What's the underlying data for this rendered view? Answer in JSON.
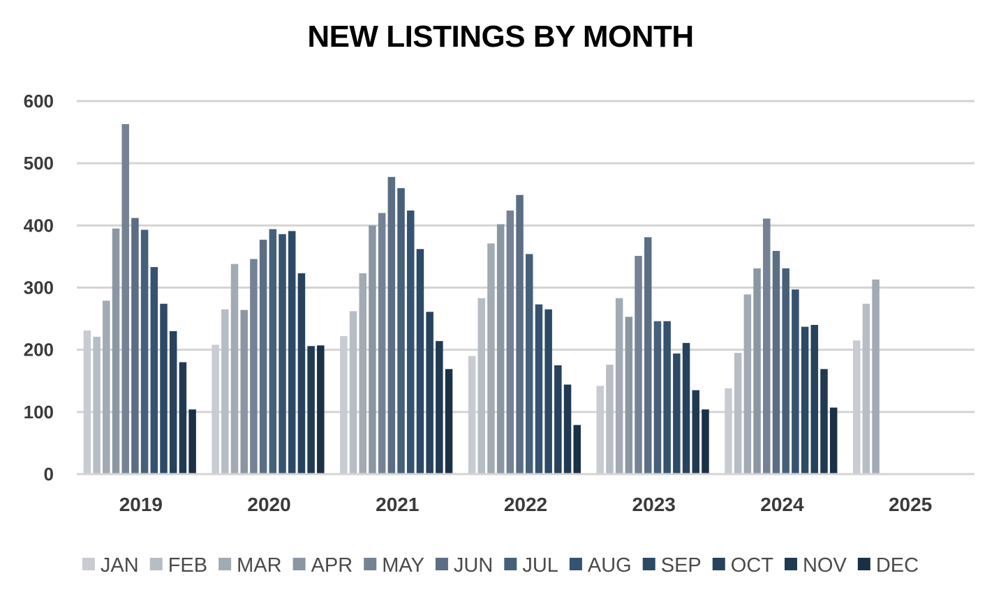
{
  "chart_data": {
    "type": "bar",
    "title": "NEW LISTINGS BY MONTH",
    "xlabel": "",
    "ylabel": "",
    "ylim": [
      0,
      600
    ],
    "yticks": [
      0,
      100,
      200,
      300,
      400,
      500,
      600
    ],
    "grid": true,
    "legend_position": "bottom",
    "categories": [
      "2019",
      "2020",
      "2021",
      "2022",
      "2023",
      "2024",
      "2025"
    ],
    "series": [
      {
        "name": "JAN",
        "color": "#c8ccd2",
        "values": [
          231,
          208,
          222,
          190,
          142,
          138,
          215
        ]
      },
      {
        "name": "FEB",
        "color": "#b7bdc5",
        "values": [
          221,
          265,
          262,
          283,
          176,
          195,
          274
        ]
      },
      {
        "name": "MAR",
        "color": "#a2aab4",
        "values": [
          279,
          338,
          323,
          371,
          283,
          289,
          313
        ]
      },
      {
        "name": "APR",
        "color": "#8c96a3",
        "values": [
          395,
          264,
          400,
          402,
          253,
          331,
          null
        ]
      },
      {
        "name": "MAY",
        "color": "#748293",
        "values": [
          563,
          346,
          420,
          424,
          351,
          411,
          null
        ]
      },
      {
        "name": "JUN",
        "color": "#5c6e84",
        "values": [
          412,
          377,
          478,
          449,
          381,
          359,
          null
        ]
      },
      {
        "name": "JUL",
        "color": "#46607a",
        "values": [
          393,
          394,
          460,
          354,
          246,
          331,
          null
        ]
      },
      {
        "name": "AUG",
        "color": "#355371",
        "values": [
          333,
          386,
          424,
          273,
          246,
          297,
          null
        ]
      },
      {
        "name": "SEP",
        "color": "#2c4a66",
        "values": [
          274,
          391,
          362,
          265,
          194,
          237,
          null
        ]
      },
      {
        "name": "OCT",
        "color": "#26425c",
        "values": [
          230,
          323,
          261,
          175,
          211,
          240,
          null
        ]
      },
      {
        "name": "NOV",
        "color": "#213a51",
        "values": [
          180,
          206,
          214,
          144,
          135,
          169,
          null
        ]
      },
      {
        "name": "DEC",
        "color": "#1c3045",
        "values": [
          104,
          207,
          169,
          79,
          104,
          107,
          null
        ]
      }
    ]
  }
}
